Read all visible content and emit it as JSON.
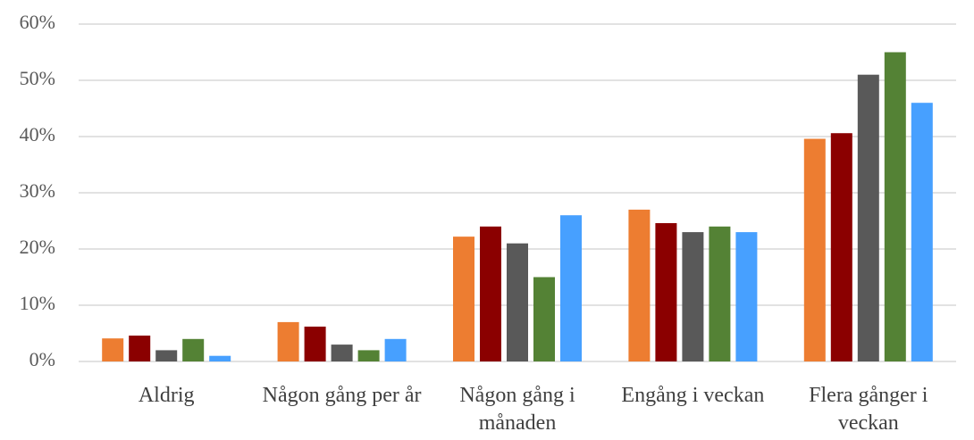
{
  "chart_data": {
    "type": "bar",
    "categories": [
      "Aldrig",
      "Någon gång per år",
      "Någon gång i månaden",
      "Engång i veckan",
      "Flera gånger i veckan"
    ],
    "series": [
      {
        "color": "#ed7d31",
        "values": [
          4.1,
          7,
          22.2,
          27,
          39.6
        ]
      },
      {
        "color": "#8b0000",
        "values": [
          4.6,
          6.2,
          24,
          24.6,
          40.6
        ]
      },
      {
        "color": "#595959",
        "values": [
          2,
          3,
          21,
          23,
          51
        ]
      },
      {
        "color": "#548235",
        "values": [
          4,
          2,
          15,
          24,
          55
        ]
      },
      {
        "color": "#47a0ff",
        "values": [
          1,
          4,
          26,
          23,
          46
        ]
      }
    ],
    "ylim": [
      0,
      60
    ],
    "yticks": [
      {
        "value": 0,
        "label": "0%"
      },
      {
        "value": 10,
        "label": "10%"
      },
      {
        "value": 20,
        "label": "20%"
      },
      {
        "value": 30,
        "label": "30%"
      },
      {
        "value": 40,
        "label": "40%"
      },
      {
        "value": 50,
        "label": "50%"
      },
      {
        "value": 60,
        "label": "60%"
      }
    ],
    "grid": true
  }
}
